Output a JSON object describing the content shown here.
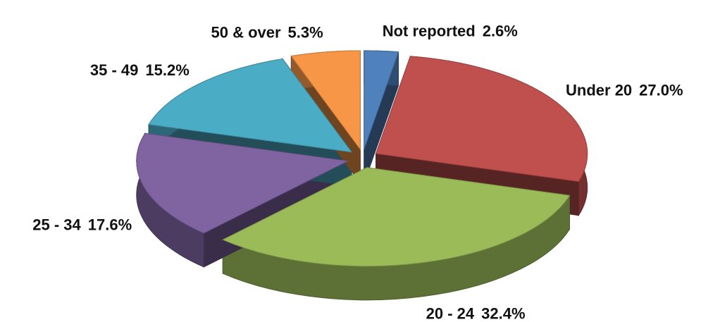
{
  "chart_data": {
    "type": "pie",
    "categories": [
      "Not reported",
      "Under 20",
      "20 - 24",
      "25 - 34",
      "35 - 49",
      "50 & over"
    ],
    "values": [
      2.6,
      27.0,
      32.4,
      17.6,
      15.2,
      5.3
    ],
    "value_labels": [
      "2.6%",
      "27.0%",
      "32.4%",
      "17.6%",
      "15.2%",
      "5.3%"
    ],
    "colors": [
      "#4f81bd",
      "#c0504d",
      "#9bbb59",
      "#8064a2",
      "#4bacc6",
      "#f79646"
    ]
  }
}
